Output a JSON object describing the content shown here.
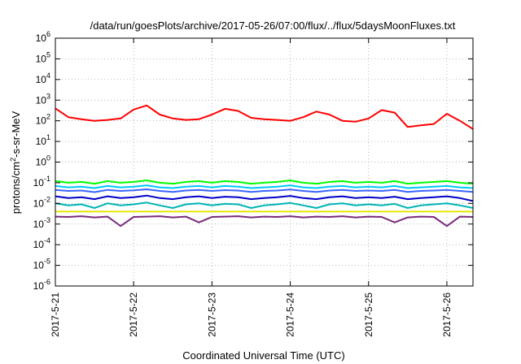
{
  "chart_data": {
    "type": "line",
    "title": "/data/run/goesPlots/archive/2017-05-26/07:00/flux/../flux/5daysMoonFluxes.txt",
    "xlabel": "Coordinated Universal Time (UTC)",
    "ylabel_parts": {
      "pre": "protons/cm",
      "sup": "2",
      "post": "-s-sr-MeV"
    },
    "y_scale": "log",
    "ylim": [
      1e-06,
      1000000.0
    ],
    "y_ticks": [
      {
        "value": 1e-06,
        "base": "10",
        "exp": "-6"
      },
      {
        "value": 1e-05,
        "base": "10",
        "exp": "-5"
      },
      {
        "value": 0.0001,
        "base": "10",
        "exp": "-4"
      },
      {
        "value": 0.001,
        "base": "10",
        "exp": "-3"
      },
      {
        "value": 0.01,
        "base": "10",
        "exp": "-2"
      },
      {
        "value": 0.1,
        "base": "10",
        "exp": "-1"
      },
      {
        "value": 1.0,
        "base": "10",
        "exp": "0"
      },
      {
        "value": 10.0,
        "base": "10",
        "exp": "1"
      },
      {
        "value": 100.0,
        "base": "10",
        "exp": "2"
      },
      {
        "value": 1000.0,
        "base": "10",
        "exp": "3"
      },
      {
        "value": 10000.0,
        "base": "10",
        "exp": "4"
      },
      {
        "value": 100000.0,
        "base": "10",
        "exp": "5"
      },
      {
        "value": 1000000.0,
        "base": "10",
        "exp": "6"
      }
    ],
    "xlim": [
      "2017-05-21T00:00",
      "2017-05-26T08:00"
    ],
    "x_ticks": [
      {
        "value": "2017-05-21T00:00",
        "label": "2017-5-21"
      },
      {
        "value": "2017-05-22T00:00",
        "label": "2017-5-22"
      },
      {
        "value": "2017-05-23T00:00",
        "label": "2017-5-23"
      },
      {
        "value": "2017-05-24T00:00",
        "label": "2017-5-24"
      },
      {
        "value": "2017-05-25T00:00",
        "label": "2017-5-25"
      },
      {
        "value": "2017-05-26T00:00",
        "label": "2017-5-26"
      }
    ],
    "grid": true,
    "x": [
      "2017-05-21T00:00",
      "2017-05-21T04:00",
      "2017-05-21T08:00",
      "2017-05-21T12:00",
      "2017-05-21T16:00",
      "2017-05-21T20:00",
      "2017-05-22T00:00",
      "2017-05-22T04:00",
      "2017-05-22T08:00",
      "2017-05-22T12:00",
      "2017-05-22T16:00",
      "2017-05-22T20:00",
      "2017-05-23T00:00",
      "2017-05-23T04:00",
      "2017-05-23T08:00",
      "2017-05-23T12:00",
      "2017-05-23T16:00",
      "2017-05-23T20:00",
      "2017-05-24T00:00",
      "2017-05-24T04:00",
      "2017-05-24T08:00",
      "2017-05-24T12:00",
      "2017-05-24T16:00",
      "2017-05-24T20:00",
      "2017-05-25T00:00",
      "2017-05-25T04:00",
      "2017-05-25T08:00",
      "2017-05-25T12:00",
      "2017-05-25T16:00",
      "2017-05-25T20:00",
      "2017-05-26T00:00",
      "2017-05-26T04:00",
      "2017-05-26T08:00"
    ],
    "series": [
      {
        "color": "#ff0000",
        "values": [
          400,
          150,
          120,
          100,
          110,
          130,
          350,
          550,
          200,
          130,
          110,
          120,
          200,
          380,
          300,
          140,
          120,
          110,
          100,
          150,
          280,
          200,
          100,
          90,
          130,
          330,
          250,
          50,
          60,
          70,
          220,
          100,
          40
        ]
      },
      {
        "color": "#00ff00",
        "values": [
          0.12,
          0.1,
          0.11,
          0.09,
          0.12,
          0.1,
          0.11,
          0.13,
          0.1,
          0.09,
          0.11,
          0.12,
          0.1,
          0.12,
          0.11,
          0.09,
          0.1,
          0.11,
          0.13,
          0.1,
          0.09,
          0.11,
          0.12,
          0.1,
          0.11,
          0.1,
          0.12,
          0.09,
          0.1,
          0.11,
          0.12,
          0.1,
          0.09
        ]
      },
      {
        "color": "#00c8ff",
        "values": [
          0.07,
          0.06,
          0.065,
          0.055,
          0.07,
          0.06,
          0.065,
          0.075,
          0.06,
          0.055,
          0.065,
          0.07,
          0.06,
          0.07,
          0.065,
          0.055,
          0.06,
          0.065,
          0.075,
          0.06,
          0.055,
          0.065,
          0.07,
          0.06,
          0.065,
          0.06,
          0.07,
          0.055,
          0.06,
          0.065,
          0.07,
          0.06,
          0.055
        ]
      },
      {
        "color": "#3c64ff",
        "values": [
          0.045,
          0.04,
          0.042,
          0.035,
          0.045,
          0.04,
          0.043,
          0.048,
          0.04,
          0.036,
          0.042,
          0.045,
          0.04,
          0.044,
          0.042,
          0.036,
          0.04,
          0.042,
          0.047,
          0.04,
          0.036,
          0.042,
          0.045,
          0.04,
          0.042,
          0.04,
          0.045,
          0.036,
          0.04,
          0.042,
          0.045,
          0.04,
          0.036
        ]
      },
      {
        "color": "#0000c8",
        "values": [
          0.022,
          0.018,
          0.02,
          0.016,
          0.022,
          0.018,
          0.02,
          0.024,
          0.018,
          0.016,
          0.02,
          0.022,
          0.018,
          0.021,
          0.02,
          0.016,
          0.018,
          0.02,
          0.023,
          0.018,
          0.016,
          0.02,
          0.022,
          0.018,
          0.02,
          0.018,
          0.021,
          0.016,
          0.018,
          0.02,
          0.022,
          0.018,
          0.013
        ]
      },
      {
        "color": "#00b4b4",
        "values": [
          0.01,
          0.008,
          0.009,
          0.006,
          0.01,
          0.008,
          0.009,
          0.011,
          0.008,
          0.006,
          0.009,
          0.01,
          0.008,
          0.0095,
          0.009,
          0.006,
          0.008,
          0.009,
          0.0105,
          0.008,
          0.006,
          0.009,
          0.01,
          0.008,
          0.009,
          0.008,
          0.0095,
          0.006,
          0.008,
          0.009,
          0.01,
          0.008,
          0.006
        ]
      },
      {
        "color": "#e6e600",
        "values": [
          0.004,
          0.004,
          0.004,
          0.004,
          0.004,
          0.004,
          0.004,
          0.004,
          0.004,
          0.004,
          0.004,
          0.004,
          0.004,
          0.004,
          0.004,
          0.004,
          0.004,
          0.004,
          0.004,
          0.004,
          0.004,
          0.004,
          0.004,
          0.004,
          0.004,
          0.004,
          0.004,
          0.004,
          0.004,
          0.004,
          0.004,
          0.004,
          0.004
        ]
      },
      {
        "color": "#7a2a7a",
        "values": [
          0.0023,
          0.0022,
          0.0024,
          0.0021,
          0.0023,
          0.0008,
          0.0022,
          0.0023,
          0.0024,
          0.0021,
          0.0023,
          0.0012,
          0.0022,
          0.0023,
          0.0024,
          0.0021,
          0.0023,
          0.0022,
          0.0024,
          0.0021,
          0.0023,
          0.0022,
          0.0024,
          0.0021,
          0.0023,
          0.0022,
          0.0012,
          0.0021,
          0.0023,
          0.0022,
          0.0008,
          0.0023,
          0.0022
        ]
      }
    ]
  }
}
